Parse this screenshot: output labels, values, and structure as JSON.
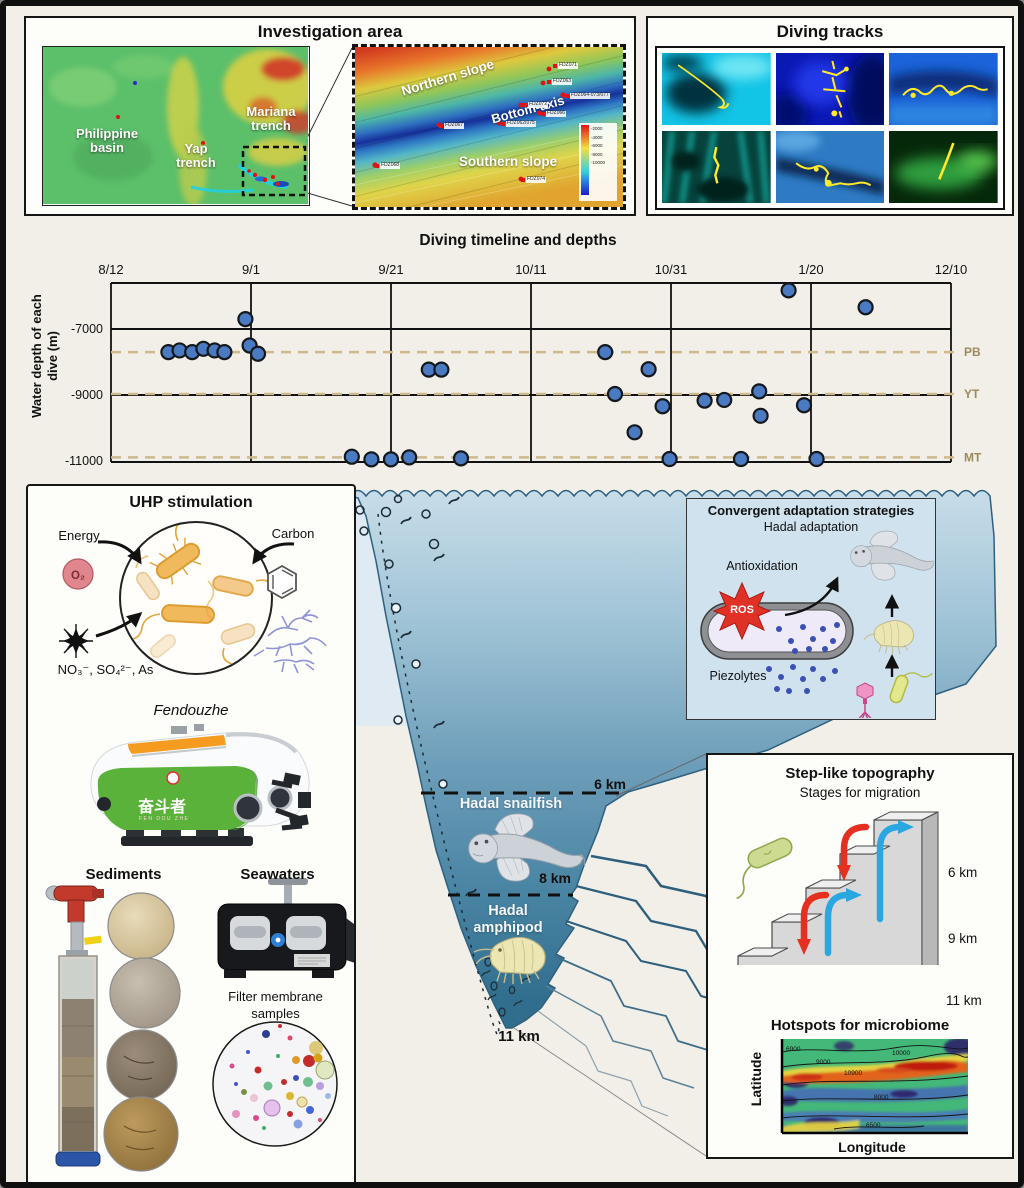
{
  "investigation": {
    "title": "Investigation area",
    "labels": {
      "basin": "Philippine\nbasin",
      "yap": "Yap\ntrench",
      "mariana": "Mariana\ntrench"
    },
    "inset": {
      "northern": "Northern slope",
      "axis": "Bottom-axis",
      "southern": "Southern slope"
    },
    "dive_sites": [
      "FDZ071",
      "FDZ063",
      "FDZ064-073/077",
      "FDZ072",
      "FDZ066",
      "FDZ067",
      "FDZ062/075",
      "FDZ068",
      "FDZ074"
    ],
    "colorbar_ticks": [
      "-2000",
      "-4000",
      "-6000",
      "-8000",
      "-10000"
    ]
  },
  "tracks": {
    "title": "Diving tracks"
  },
  "chart_data": {
    "type": "scatter",
    "title": "Diving timeline and depths",
    "ylabel": "Water depth of each dive (m)",
    "x_tick_labels": [
      "8/12",
      "9/1",
      "9/21",
      "10/11",
      "10/31",
      "1/20",
      "12/10"
    ],
    "y_ticks": [
      -7000,
      -9000,
      -11000
    ],
    "ylim": [
      -11150,
      -5600
    ],
    "grid": "solid vertical lines at each date; solid horizontal lines at -7000 and -9000",
    "legend_position": "none",
    "reference_lines": [
      {
        "label": "PB",
        "depth": -7700
      },
      {
        "label": "YT",
        "depth": -8970
      },
      {
        "label": "MT",
        "depth": -10890
      }
    ],
    "points": [
      {
        "x": 0.41,
        "depth": -7700
      },
      {
        "x": 0.49,
        "depth": -7650
      },
      {
        "x": 0.58,
        "depth": -7700
      },
      {
        "x": 0.66,
        "depth": -7600
      },
      {
        "x": 0.74,
        "depth": -7650
      },
      {
        "x": 0.81,
        "depth": -7700
      },
      {
        "x": 0.96,
        "depth": -6700
      },
      {
        "x": 0.99,
        "depth": -7500
      },
      {
        "x": 1.05,
        "depth": -7750
      },
      {
        "x": 1.72,
        "depth": -10870
      },
      {
        "x": 1.86,
        "depth": -10950
      },
      {
        "x": 2.0,
        "depth": -10950
      },
      {
        "x": 2.13,
        "depth": -10890
      },
      {
        "x": 2.27,
        "depth": -8230
      },
      {
        "x": 2.36,
        "depth": -8230
      },
      {
        "x": 2.5,
        "depth": -10920
      },
      {
        "x": 3.53,
        "depth": -7700
      },
      {
        "x": 3.6,
        "depth": -8970
      },
      {
        "x": 3.74,
        "depth": -10130
      },
      {
        "x": 3.84,
        "depth": -8220
      },
      {
        "x": 3.94,
        "depth": -9340
      },
      {
        "x": 3.99,
        "depth": -10940
      },
      {
        "x": 4.24,
        "depth": -9170
      },
      {
        "x": 4.38,
        "depth": -9150
      },
      {
        "x": 4.5,
        "depth": -10940
      },
      {
        "x": 4.63,
        "depth": -8890
      },
      {
        "x": 4.64,
        "depth": -9630
      },
      {
        "x": 4.84,
        "depth": -5830
      },
      {
        "x": 4.95,
        "depth": -9310
      },
      {
        "x": 5.04,
        "depth": -10940
      },
      {
        "x": 5.39,
        "depth": -6340
      }
    ]
  },
  "uhp": {
    "title": "UHP stimulation",
    "energy": "Energy",
    "o2": "O₂",
    "carbon": "Carbon",
    "nutrients": "NO₃⁻, SO₄²⁻, As",
    "vehicle_name": "Fendouzhe",
    "vehicle_hull_text": "奋斗者",
    "vehicle_hull_subtext": "FEN DOU ZHE",
    "sediments": "Sediments",
    "seawaters": "Seawaters",
    "filter_line1": "Filter membrane",
    "filter_line2": "samples"
  },
  "ocean": {
    "adaptation_title": "Convergent adaptation strategies",
    "adaptation_subtitle": "Hadal adaptation",
    "antioxidation": "Antioxidation",
    "ros": "ROS",
    "piezolytes": "Piezolytes",
    "snailfish": "Hadal snailfish",
    "amphipod": "Hadal amphipod",
    "depth6": "6 km",
    "depth8": "8 km",
    "depth11": "11 km"
  },
  "steps": {
    "title": "Step-like topography",
    "subtitle": "Stages for migration",
    "d6": "6 km",
    "d9": "9 km",
    "d11": "11 km",
    "hotspots_title": "Hotspots for microbiome",
    "lat": "Latitude",
    "lon": "Longitude",
    "contours": [
      "6900",
      "9000",
      "10000",
      "10900",
      "8000",
      "6500"
    ]
  },
  "colors": {
    "background": "#f2efe8",
    "point": "#4a7ac2",
    "point_stroke": "#14181c",
    "ref_line": "#cdb98c",
    "ref_label": "#9d8a5c",
    "ocean_deep": "#316e8e",
    "adaptation_bg": "#cfe2ee",
    "ros_red": "#e03127",
    "piezolyte_blue": "#3a50b5"
  }
}
